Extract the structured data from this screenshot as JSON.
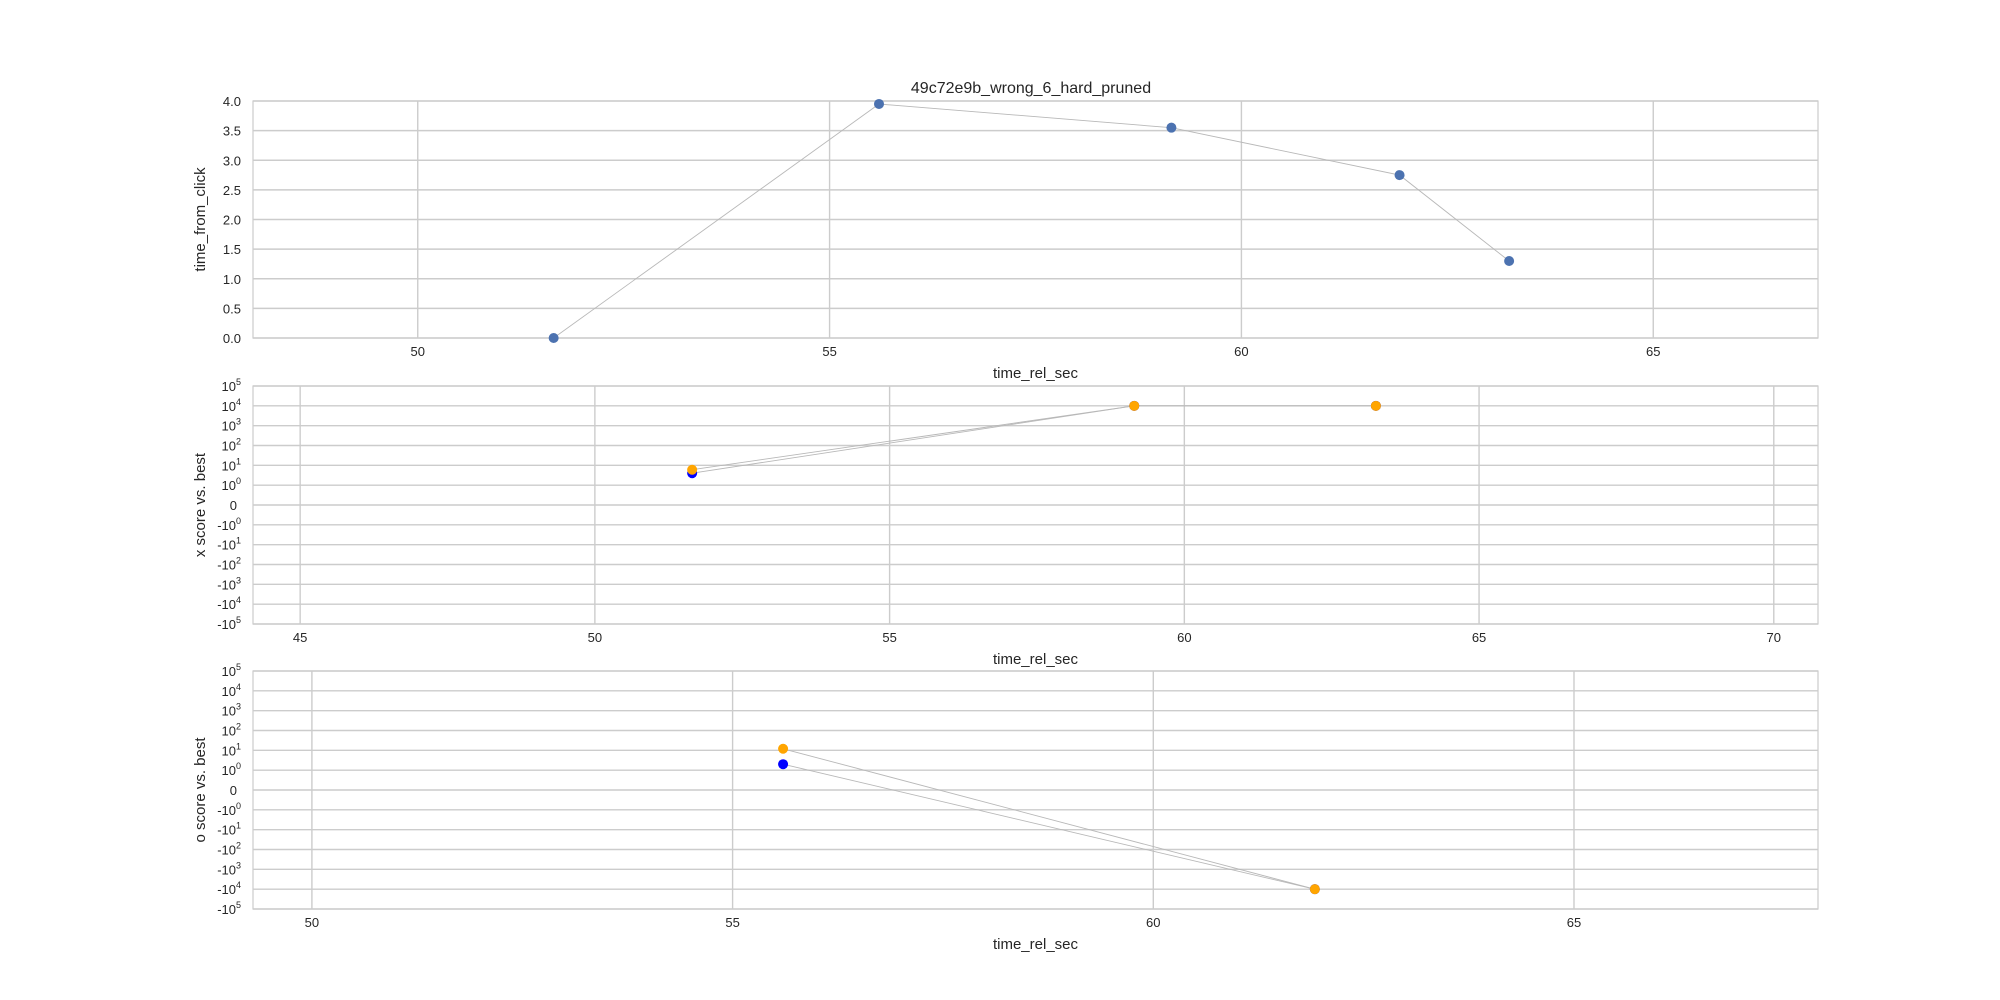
{
  "figure_title": "49c72e9b_wrong_6_hard_pruned",
  "colors": {
    "grid": "#cccccc",
    "frame": "#cccccc",
    "steel": "#4c72b0",
    "blue": "#0000ff",
    "orange": "#ffa500",
    "line": "#b8b8b8"
  },
  "chart_data": [
    {
      "type": "scatter",
      "title": "49c72e9b_wrong_6_hard_pruned",
      "xlabel": "time_rel_sec",
      "ylabel": "time_from_click",
      "xlim": [
        48.0,
        67.0
      ],
      "ylim": [
        0.0,
        4.0
      ],
      "y_scale": "linear",
      "grid": true,
      "x_ticks": [
        50,
        55,
        60,
        65
      ],
      "x_tick_labels": [
        "50",
        "55",
        "60",
        "65"
      ],
      "y_ticks": [
        0.0,
        0.5,
        1.0,
        1.5,
        2.0,
        2.5,
        3.0,
        3.5,
        4.0
      ],
      "y_tick_labels": [
        "0.0",
        "0.5",
        "1.0",
        "1.5",
        "2.0",
        "2.5",
        "3.0",
        "3.5",
        "4.0"
      ],
      "series": [
        {
          "color": "#4c72b0",
          "connected": true,
          "x": [
            51.65,
            55.6,
            59.15,
            61.92,
            63.25
          ],
          "y": [
            0.0,
            3.95,
            3.55,
            2.75,
            1.3
          ]
        }
      ]
    },
    {
      "type": "scatter",
      "title": "",
      "xlabel": "time_rel_sec",
      "ylabel": "x score vs. best",
      "xlim": [
        44.2,
        70.75
      ],
      "ylim": [
        -100000,
        100000
      ],
      "y_scale": "symlog",
      "grid": true,
      "x_ticks": [
        45,
        50,
        55,
        60,
        65,
        70
      ],
      "x_tick_labels": [
        "45",
        "50",
        "55",
        "60",
        "65",
        "70"
      ],
      "y_ticks": [
        {
          "v": 100000,
          "base": "10",
          "exp": "5"
        },
        {
          "v": 10000,
          "base": "10",
          "exp": "4"
        },
        {
          "v": 1000,
          "base": "10",
          "exp": "3"
        },
        {
          "v": 100,
          "base": "10",
          "exp": "2"
        },
        {
          "v": 10,
          "base": "10",
          "exp": "1"
        },
        {
          "v": 1,
          "base": "10",
          "exp": "0"
        },
        {
          "v": 0,
          "base": "0",
          "exp": ""
        },
        {
          "v": -1,
          "base": "-10",
          "exp": "0"
        },
        {
          "v": -10,
          "base": "-10",
          "exp": "1"
        },
        {
          "v": -100,
          "base": "-10",
          "exp": "2"
        },
        {
          "v": -1000,
          "base": "-10",
          "exp": "3"
        },
        {
          "v": -10000,
          "base": "-10",
          "exp": "4"
        },
        {
          "v": -100000,
          "base": "-10",
          "exp": "5"
        }
      ],
      "series": [
        {
          "color": "#0000ff",
          "connected": true,
          "x": [
            51.65,
            59.15,
            63.25
          ],
          "y": [
            4,
            10000,
            10000
          ]
        },
        {
          "color": "#ffa500",
          "connected": true,
          "x": [
            51.65,
            59.15,
            63.25
          ],
          "y": [
            6,
            10000,
            10000
          ]
        }
      ]
    },
    {
      "type": "scatter",
      "title": "",
      "xlabel": "time_rel_sec",
      "ylabel": "o score vs. best",
      "xlim": [
        49.3,
        67.9
      ],
      "ylim": [
        -100000,
        100000
      ],
      "y_scale": "symlog",
      "grid": true,
      "x_ticks": [
        50,
        55,
        60,
        65
      ],
      "x_tick_labels": [
        "50",
        "55",
        "60",
        "65"
      ],
      "y_ticks": [
        {
          "v": 100000,
          "base": "10",
          "exp": "5"
        },
        {
          "v": 10000,
          "base": "10",
          "exp": "4"
        },
        {
          "v": 1000,
          "base": "10",
          "exp": "3"
        },
        {
          "v": 100,
          "base": "10",
          "exp": "2"
        },
        {
          "v": 10,
          "base": "10",
          "exp": "1"
        },
        {
          "v": 1,
          "base": "10",
          "exp": "0"
        },
        {
          "v": 0,
          "base": "0",
          "exp": ""
        },
        {
          "v": -1,
          "base": "-10",
          "exp": "0"
        },
        {
          "v": -10,
          "base": "-10",
          "exp": "1"
        },
        {
          "v": -100,
          "base": "-10",
          "exp": "2"
        },
        {
          "v": -1000,
          "base": "-10",
          "exp": "3"
        },
        {
          "v": -10000,
          "base": "-10",
          "exp": "4"
        },
        {
          "v": -100000,
          "base": "-10",
          "exp": "5"
        }
      ],
      "series": [
        {
          "color": "#0000ff",
          "connected": true,
          "x": [
            55.6,
            61.92
          ],
          "y": [
            2,
            -10000
          ]
        },
        {
          "color": "#ffa500",
          "connected": true,
          "x": [
            55.6,
            61.92
          ],
          "y": [
            12,
            -10000
          ]
        }
      ]
    }
  ]
}
